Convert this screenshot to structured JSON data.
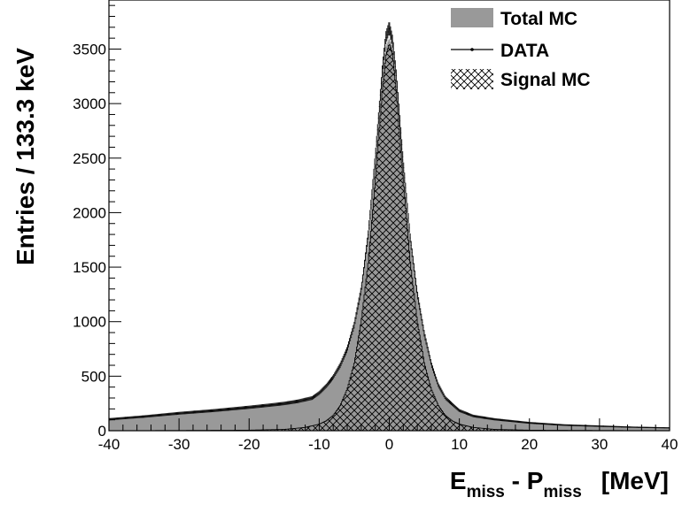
{
  "chart_data": {
    "type": "histogram",
    "xlabel": {
      "main_e": "E",
      "sub_e": "miss",
      "dash": " - ",
      "main_p": "P",
      "sub_p": "miss",
      "unit": "[MeV]"
    },
    "ylabel": "Entries / 133.3 keV",
    "xlim": [
      -40,
      40
    ],
    "ylim": [
      0,
      3950
    ],
    "x_ticks": [
      -40,
      -30,
      -20,
      -10,
      0,
      10,
      20,
      30,
      40
    ],
    "y_ticks": [
      0,
      500,
      1000,
      1500,
      2000,
      2500,
      3000,
      3500
    ],
    "legend": {
      "placement": "top-right",
      "entries": [
        "Total MC",
        "DATA",
        "Signal MC"
      ]
    },
    "colors": {
      "total_mc_fill": "#999999",
      "signal_mc_hatch": "#000000",
      "data_markers": "#000000",
      "frame": "#000000"
    },
    "series": [
      {
        "name": "Total MC",
        "style": "filled-gray",
        "x": [
          -40,
          -35,
          -30,
          -25,
          -20,
          -17,
          -15,
          -13,
          -11,
          -10,
          -9,
          -8,
          -7,
          -6,
          -5,
          -4,
          -3,
          -2,
          -1.5,
          -1,
          -0.5,
          0,
          0.5,
          1,
          1.5,
          2,
          3,
          4,
          5,
          6,
          7,
          8,
          10,
          12,
          15,
          20,
          25,
          30,
          35,
          40
        ],
        "y": [
          100,
          125,
          155,
          180,
          210,
          230,
          245,
          260,
          290,
          330,
          390,
          470,
          580,
          730,
          950,
          1280,
          1780,
          2480,
          2870,
          3250,
          3520,
          3600,
          3500,
          3200,
          2820,
          2430,
          1740,
          1240,
          880,
          600,
          410,
          290,
          180,
          130,
          100,
          70,
          50,
          40,
          30,
          25
        ]
      },
      {
        "name": "DATA",
        "style": "points-with-errors",
        "x": [
          -40,
          -35,
          -30,
          -25,
          -20,
          -17,
          -15,
          -13,
          -11,
          -10,
          -9,
          -8,
          -7,
          -6,
          -5,
          -4,
          -3,
          -2,
          -1.5,
          -1,
          -0.5,
          0,
          0.5,
          1,
          1.5,
          2,
          3,
          4,
          5,
          6,
          7,
          8,
          10,
          12,
          15,
          20,
          25,
          30,
          35,
          40
        ],
        "y": [
          105,
          130,
          160,
          185,
          215,
          235,
          250,
          270,
          300,
          345,
          410,
          490,
          600,
          750,
          970,
          1300,
          1800,
          2500,
          2900,
          3300,
          3600,
          3700,
          3560,
          3250,
          2860,
          2450,
          1760,
          1260,
          890,
          610,
          420,
          300,
          185,
          135,
          105,
          72,
          52,
          42,
          32,
          26
        ]
      },
      {
        "name": "Signal MC",
        "style": "cross-hatched",
        "x": [
          -40,
          -30,
          -20,
          -15,
          -12,
          -10,
          -9,
          -8,
          -7,
          -6,
          -5,
          -4,
          -3,
          -2,
          -1.5,
          -1,
          -0.5,
          0,
          0.5,
          1,
          1.5,
          2,
          3,
          4,
          5,
          6,
          7,
          8,
          9,
          10,
          12,
          15,
          20,
          30,
          40
        ],
        "y": [
          0,
          2,
          5,
          12,
          30,
          60,
          90,
          140,
          230,
          380,
          620,
          1000,
          1540,
          2280,
          2700,
          3120,
          3440,
          3550,
          3450,
          3120,
          2700,
          2280,
          1540,
          1000,
          620,
          380,
          230,
          140,
          90,
          60,
          30,
          12,
          5,
          2,
          0
        ]
      }
    ]
  }
}
